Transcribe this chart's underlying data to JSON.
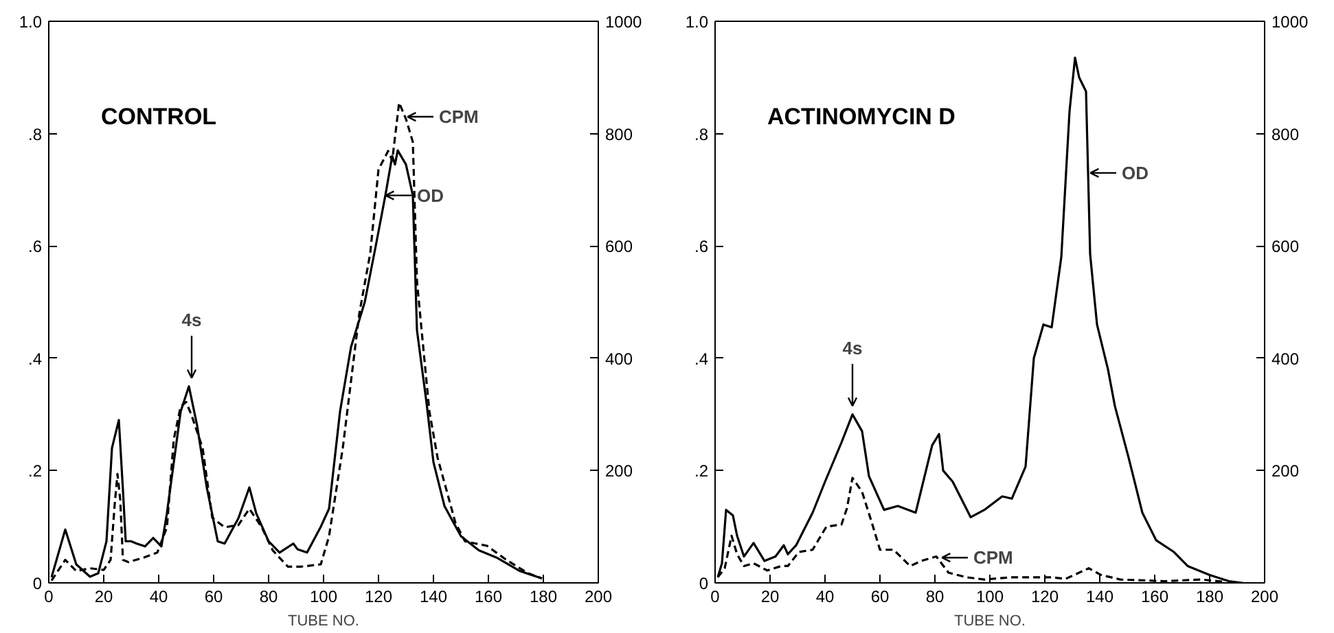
{
  "chart_data": [
    {
      "type": "line",
      "title": "CONTROL",
      "xlabel": "TUBE NO.",
      "xlim": [
        0,
        200
      ],
      "xticks": [
        0,
        20,
        40,
        60,
        80,
        100,
        120,
        140,
        160,
        180,
        200
      ],
      "ylim": [
        0,
        1
      ],
      "yticks": [
        0,
        {
          "value": 0.2,
          "label": ".2"
        },
        {
          "value": 0.4,
          "label": ".4"
        },
        {
          "value": 0.6,
          "label": ".6"
        },
        {
          "value": 0.8,
          "label": ".8"
        },
        {
          "value": 1,
          "label": "1.0"
        }
      ],
      "y2lim": [
        0,
        1000
      ],
      "y2ticks": [
        200,
        400,
        600,
        800,
        1000
      ],
      "grid": false,
      "series": [
        {
          "color": "#000000",
          "line_style": "solid",
          "x": [
            1,
            6,
            10,
            15,
            18,
            21,
            23,
            25.5,
            27,
            28,
            30,
            32,
            35,
            38,
            41,
            43,
            48,
            51,
            54,
            57.5,
            61.5,
            64,
            69,
            73,
            75.5,
            80,
            84,
            89,
            90.5,
            94,
            99,
            102,
            106,
            110,
            115,
            119,
            122.5,
            125,
            126,
            127,
            130,
            132.5,
            134,
            137.5,
            140,
            144,
            150,
            156.5,
            163,
            171.5,
            179.5
          ],
          "values": [
            0.01,
            0.095,
            0.033,
            0.011,
            0.017,
            0.074,
            0.24,
            0.29,
            0.165,
            0.074,
            0.074,
            0.07,
            0.065,
            0.08,
            0.065,
            0.124,
            0.305,
            0.35,
            0.28,
            0.17,
            0.074,
            0.07,
            0.115,
            0.17,
            0.124,
            0.074,
            0.054,
            0.07,
            0.06,
            0.054,
            0.1,
            0.132,
            0.305,
            0.42,
            0.5,
            0.6,
            0.69,
            0.76,
            0.745,
            0.77,
            0.745,
            0.69,
            0.45,
            0.32,
            0.215,
            0.137,
            0.083,
            0.058,
            0.045,
            0.021,
            0.008
          ]
        },
        {
          "color": "#000000",
          "line_style": "dashed",
          "axis": "y2",
          "x": [
            1,
            6,
            10,
            15,
            20,
            22.5,
            24,
            25,
            26,
            27,
            29,
            34.5,
            39.5,
            43,
            45.5,
            48,
            50,
            52,
            56,
            59.5,
            64,
            69,
            73,
            77.5,
            81.5,
            87,
            92,
            99,
            102,
            107,
            113,
            117,
            120,
            123.5,
            125,
            127.5,
            130,
            132.5,
            134,
            138.5,
            141.5,
            148,
            151.5,
            159.5,
            166.5,
            174.5,
            179.5
          ],
          "values": [
            4,
            41,
            21,
            26,
            23,
            41,
            140,
            194,
            149,
            41,
            37,
            45,
            54,
            99,
            256,
            314,
            322,
            298,
            240,
            116,
            99,
            103,
            132,
            99,
            58,
            29,
            29,
            33,
            83,
            240,
            479,
            587,
            736,
            769,
            752,
            855,
            826,
            785,
            537,
            306,
            223,
            107,
            74,
            66,
            41,
            17,
            8
          ]
        }
      ],
      "annotations": [
        {
          "text": "4s",
          "x": 52,
          "y": 0.36
        },
        {
          "text": "CPM",
          "x": 130,
          "y": 0.83
        },
        {
          "text": "OD",
          "x": 122,
          "y": 0.69
        }
      ]
    },
    {
      "type": "line",
      "title": "ACTINOMYCIN D",
      "xlabel": "TUBE NO.",
      "xlim": [
        0,
        200
      ],
      "xticks": [
        0,
        20,
        40,
        60,
        80,
        100,
        120,
        140,
        160,
        180,
        200
      ],
      "ylim": [
        0,
        1
      ],
      "yticks": [
        0,
        {
          "value": 0.2,
          "label": ".2"
        },
        {
          "value": 0.4,
          "label": ".4"
        },
        {
          "value": 0.6,
          "label": ".6"
        },
        {
          "value": 0.8,
          "label": ".8"
        },
        {
          "value": 1,
          "label": "1.0"
        }
      ],
      "y2lim": [
        0,
        1000
      ],
      "y2ticks": [
        200,
        400,
        600,
        800,
        1000
      ],
      "grid": false,
      "series": [
        {
          "color": "#000000",
          "line_style": "solid",
          "x": [
            1,
            2.5,
            4,
            6.5,
            8,
            10.5,
            14,
            18,
            22,
            25,
            26.5,
            29.5,
            35.5,
            40,
            46,
            50,
            53.5,
            56,
            61.5,
            66.5,
            73,
            79,
            81.5,
            83,
            86.5,
            93,
            98,
            104.5,
            108,
            113,
            116,
            119.5,
            122.5,
            126,
            129,
            131,
            132.5,
            135,
            136.5,
            139,
            143,
            145.5,
            150.5,
            155.5,
            160.5,
            167,
            172,
            180,
            187,
            192
          ],
          "values": [
            0.01,
            0.035,
            0.13,
            0.12,
            0.084,
            0.047,
            0.071,
            0.039,
            0.047,
            0.067,
            0.051,
            0.067,
            0.125,
            0.18,
            0.25,
            0.3,
            0.27,
            0.19,
            0.13,
            0.137,
            0.125,
            0.245,
            0.265,
            0.2,
            0.18,
            0.117,
            0.13,
            0.154,
            0.15,
            0.207,
            0.4,
            0.46,
            0.455,
            0.58,
            0.84,
            0.935,
            0.9,
            0.875,
            0.585,
            0.46,
            0.38,
            0.315,
            0.223,
            0.125,
            0.076,
            0.055,
            0.03,
            0.014,
            0.003,
            0
          ]
        },
        {
          "color": "#000000",
          "line_style": "dashed",
          "axis": "y2",
          "x": [
            1,
            3.5,
            6,
            8,
            10.5,
            14,
            19,
            24,
            26.5,
            30.5,
            35.5,
            40.5,
            46,
            48,
            50,
            53.5,
            57,
            60,
            65,
            71,
            75,
            80.5,
            85,
            91.5,
            98,
            108,
            122.5,
            127.5,
            136,
            140.5,
            147.5,
            164,
            177,
            185
          ],
          "values": [
            10,
            26,
            84,
            51,
            30,
            35,
            22,
            30,
            30,
            55,
            59,
            100,
            104,
            133,
            187,
            162,
            108,
            59,
            59,
            30,
            39,
            47,
            18,
            10,
            6,
            10,
            10,
            7,
            26,
            14,
            6,
            3,
            6,
            2
          ]
        }
      ],
      "annotations": [
        {
          "text": "4s",
          "x": 50,
          "y": 0.31
        },
        {
          "text": "OD",
          "x": 136,
          "y": 0.73
        },
        {
          "text": "CPM",
          "x": 82,
          "y": 0.045
        }
      ]
    }
  ]
}
